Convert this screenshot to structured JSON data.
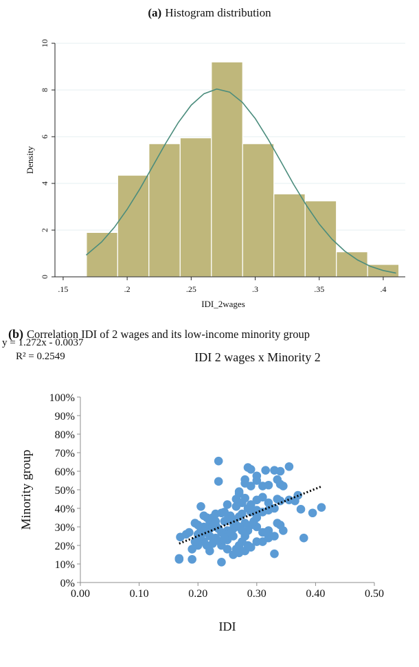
{
  "chart_data": [
    {
      "type": "histogram",
      "panel_label": "(a)",
      "title": "Histogram distribution",
      "x_label": "IDI_2wages",
      "y_label": "Density",
      "bins": [
        0.1682,
        0.1926,
        0.217,
        0.2414,
        0.2658,
        0.2902,
        0.3146,
        0.339,
        0.3634,
        0.3878,
        0.4122
      ],
      "values": [
        1.9,
        4.35,
        5.7,
        5.95,
        9.2,
        5.7,
        3.55,
        3.25,
        1.07,
        0.53
      ],
      "color": "#bfb77b",
      "curve": {
        "color": "#4a8c7c",
        "x": [
          0.168,
          0.18,
          0.19,
          0.2,
          0.21,
          0.22,
          0.23,
          0.24,
          0.25,
          0.26,
          0.27,
          0.28,
          0.29,
          0.3,
          0.31,
          0.32,
          0.33,
          0.34,
          0.35,
          0.36,
          0.37,
          0.38,
          0.39,
          0.4,
          0.41
        ],
        "values": [
          0.93,
          1.49,
          2.12,
          2.89,
          3.77,
          4.74,
          5.71,
          6.61,
          7.35,
          7.84,
          8.04,
          7.91,
          7.47,
          6.78,
          5.9,
          4.94,
          3.96,
          3.06,
          2.26,
          1.61,
          1.1,
          0.72,
          0.45,
          0.27,
          0.16
        ]
      },
      "xlim": [
        0.1436,
        0.4172
      ],
      "ylim": [
        0,
        10
      ],
      "xticks": [
        {
          "value": 0.15,
          "label": ".15"
        },
        {
          "value": 0.2,
          "label": ".2"
        },
        {
          "value": 0.25,
          "label": ".25"
        },
        {
          "value": 0.3,
          "label": ".3"
        },
        {
          "value": 0.35,
          "label": ".35"
        },
        {
          "value": 0.4,
          "label": ".4"
        }
      ],
      "yticks": [
        0,
        2,
        4,
        6,
        8,
        10
      ],
      "grid": true
    },
    {
      "type": "scatter",
      "panel_label": "(b)",
      "caption": "Correlation IDI of 2 wages and its low-income minority group",
      "title": "IDI 2 wages x Minority 2",
      "equation": "y = 1.272x - 0.0037",
      "r_squared": "R² = 0.2549",
      "x_label": "IDI",
      "y_label": "Minority group",
      "color": "#5b9bd5",
      "x": [
        0.168,
        0.168,
        0.17,
        0.19,
        0.19,
        0.18,
        0.185,
        0.235,
        0.235,
        0.24,
        0.285,
        0.29,
        0.315,
        0.33,
        0.34,
        0.355,
        0.3,
        0.3,
        0.28,
        0.28,
        0.31,
        0.32,
        0.34,
        0.345,
        0.335,
        0.205,
        0.25,
        0.29,
        0.27,
        0.27,
        0.265,
        0.28,
        0.3,
        0.31,
        0.32,
        0.34,
        0.355,
        0.37,
        0.365,
        0.395,
        0.41,
        0.38,
        0.375,
        0.33,
        0.345,
        0.34,
        0.335,
        0.32,
        0.31,
        0.3,
        0.29,
        0.28,
        0.27,
        0.26,
        0.25,
        0.25,
        0.24,
        0.23,
        0.22,
        0.21,
        0.2,
        0.205,
        0.21,
        0.22,
        0.215,
        0.225,
        0.23,
        0.24,
        0.245,
        0.26,
        0.27,
        0.275,
        0.285,
        0.29,
        0.29,
        0.3,
        0.31,
        0.32,
        0.33,
        0.335,
        0.3,
        0.295,
        0.285,
        0.28,
        0.275,
        0.27,
        0.265,
        0.26,
        0.28,
        0.29,
        0.3,
        0.31,
        0.32,
        0.33,
        0.315,
        0.26,
        0.255,
        0.24,
        0.235,
        0.23,
        0.22,
        0.2,
        0.195,
        0.2,
        0.215,
        0.22,
        0.225,
        0.235,
        0.245,
        0.25,
        0.27,
        0.285,
        0.275,
        0.265,
        0.255,
        0.245,
        0.23,
        0.215,
        0.205,
        0.2,
        0.195,
        0.21,
        0.225,
        0.265,
        0.275,
        0.26,
        0.25
      ],
      "values": [
        13,
        12.5,
        24.5,
        12.5,
        18,
        26,
        27,
        65.5,
        54.5,
        11,
        62,
        61,
        60.5,
        60.5,
        60,
        62.5,
        57.5,
        55,
        55.5,
        53.5,
        52,
        52.5,
        53,
        52,
        55.5,
        41,
        42,
        52,
        49,
        48,
        45,
        45.5,
        44.5,
        46,
        43,
        44,
        44.5,
        47,
        44,
        37.5,
        40.5,
        24,
        39.5,
        15.5,
        28,
        31,
        32,
        28,
        27,
        30,
        31,
        32,
        30,
        29,
        28,
        23,
        20,
        24,
        25,
        22,
        23,
        28,
        30,
        33,
        35,
        35,
        37,
        37.5,
        33,
        34,
        35.5,
        37,
        40,
        42,
        38,
        39,
        38,
        39,
        40,
        45,
        35,
        33,
        28,
        25,
        22,
        20,
        18,
        15,
        17,
        19,
        22,
        22,
        24,
        25,
        27,
        25,
        26,
        27,
        29,
        31,
        29,
        31,
        32,
        26,
        20,
        17,
        21,
        22.5,
        24,
        18,
        16,
        20,
        28,
        31,
        36,
        38,
        33,
        27,
        25,
        20,
        22,
        36,
        30,
        41,
        43,
        32,
        34
      ],
      "trendline": {
        "color": "#000000",
        "x": [
          0.168,
          0.41
        ],
        "values": [
          21.0,
          51.8
        ]
      },
      "xlim": [
        0,
        0.5
      ],
      "ylim": [
        0,
        100
      ],
      "xticks": [
        {
          "value": 0,
          "label": "0.00"
        },
        {
          "value": 0.1,
          "label": "0.10"
        },
        {
          "value": 0.2,
          "label": "0.20"
        },
        {
          "value": 0.3,
          "label": "0.30"
        },
        {
          "value": 0.4,
          "label": "0.40"
        },
        {
          "value": 0.5,
          "label": "0.50"
        }
      ],
      "yticks": [
        {
          "value": 0,
          "label": "0%"
        },
        {
          "value": 10,
          "label": "10%"
        },
        {
          "value": 20,
          "label": "20%"
        },
        {
          "value": 30,
          "label": "30%"
        },
        {
          "value": 40,
          "label": "40%"
        },
        {
          "value": 50,
          "label": "50%"
        },
        {
          "value": 60,
          "label": "60%"
        },
        {
          "value": 70,
          "label": "70%"
        },
        {
          "value": 80,
          "label": "80%"
        },
        {
          "value": 90,
          "label": "90%"
        },
        {
          "value": 100,
          "label": "100%"
        }
      ],
      "grid": false
    }
  ]
}
